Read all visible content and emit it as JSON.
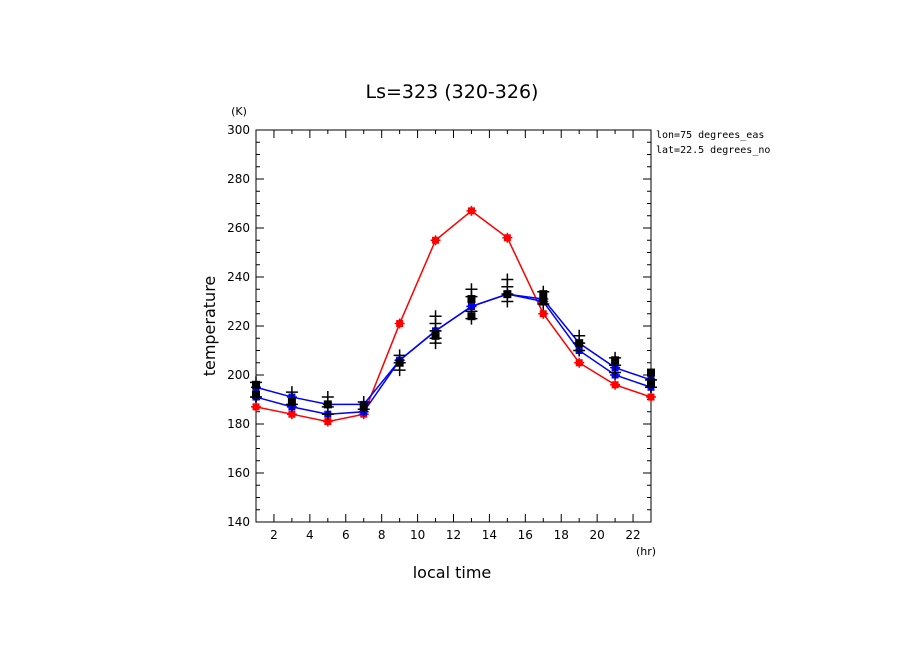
{
  "chart_data": {
    "type": "line",
    "title": "Ls=323 (320-326)",
    "xlabel": "local time",
    "ylabel": "temperature",
    "x_unit": "(hr)",
    "y_unit": "(K)",
    "xlim": [
      1,
      23
    ],
    "ylim": [
      140,
      300
    ],
    "x_ticks": [
      2,
      4,
      6,
      8,
      10,
      12,
      14,
      16,
      18,
      20,
      22
    ],
    "y_ticks": [
      140,
      160,
      180,
      200,
      220,
      240,
      260,
      280,
      300
    ],
    "annotations": [
      "lon=75 degrees_eas",
      "lat=22.5 degrees_no"
    ],
    "grid": false,
    "x": [
      1,
      3,
      5,
      7,
      9,
      11,
      13,
      15,
      17,
      19,
      21,
      23
    ],
    "series": [
      {
        "color": "#ff0000",
        "values": [
          187,
          184,
          181,
          184,
          221,
          255,
          267,
          256,
          225,
          205,
          196,
          191
        ]
      },
      {
        "color": "#0000ff",
        "values": [
          191,
          187,
          184,
          185,
          206,
          218,
          228,
          233,
          230,
          210,
          200,
          195
        ]
      },
      {
        "color": "#0000ff",
        "values": [
          195,
          191,
          188,
          188,
          206,
          218,
          228,
          233,
          231,
          213,
          203,
          198
        ]
      }
    ],
    "scatter": {
      "color": "#000000",
      "squares": [
        {
          "x": 1,
          "y": 196
        },
        {
          "x": 1,
          "y": 192
        },
        {
          "x": 3,
          "y": 189
        },
        {
          "x": 5,
          "y": 188
        },
        {
          "x": 7,
          "y": 187
        },
        {
          "x": 9,
          "y": 205
        },
        {
          "x": 11,
          "y": 216
        },
        {
          "x": 13,
          "y": 231
        },
        {
          "x": 13,
          "y": 224
        },
        {
          "x": 15,
          "y": 233
        },
        {
          "x": 17,
          "y": 233
        },
        {
          "x": 17,
          "y": 230
        },
        {
          "x": 19,
          "y": 213
        },
        {
          "x": 21,
          "y": 206
        },
        {
          "x": 23,
          "y": 201
        },
        {
          "x": 23,
          "y": 197
        }
      ],
      "crosses": [
        {
          "x": 1,
          "y": 197
        },
        {
          "x": 1,
          "y": 191
        },
        {
          "x": 3,
          "y": 193
        },
        {
          "x": 3,
          "y": 188
        },
        {
          "x": 5,
          "y": 191
        },
        {
          "x": 5,
          "y": 187
        },
        {
          "x": 5,
          "y": 184
        },
        {
          "x": 7,
          "y": 189
        },
        {
          "x": 7,
          "y": 186
        },
        {
          "x": 9,
          "y": 208
        },
        {
          "x": 9,
          "y": 205
        },
        {
          "x": 9,
          "y": 202
        },
        {
          "x": 11,
          "y": 224
        },
        {
          "x": 11,
          "y": 221
        },
        {
          "x": 11,
          "y": 218
        },
        {
          "x": 11,
          "y": 215
        },
        {
          "x": 11,
          "y": 213
        },
        {
          "x": 13,
          "y": 235
        },
        {
          "x": 13,
          "y": 232
        },
        {
          "x": 13,
          "y": 226
        },
        {
          "x": 13,
          "y": 223
        },
        {
          "x": 15,
          "y": 239
        },
        {
          "x": 15,
          "y": 236
        },
        {
          "x": 15,
          "y": 233
        },
        {
          "x": 15,
          "y": 230
        },
        {
          "x": 17,
          "y": 234
        },
        {
          "x": 17,
          "y": 229
        },
        {
          "x": 19,
          "y": 216
        },
        {
          "x": 19,
          "y": 213
        },
        {
          "x": 19,
          "y": 210
        },
        {
          "x": 21,
          "y": 207
        },
        {
          "x": 21,
          "y": 204
        },
        {
          "x": 21,
          "y": 201
        },
        {
          "x": 23,
          "y": 198
        },
        {
          "x": 23,
          "y": 195
        }
      ]
    }
  }
}
